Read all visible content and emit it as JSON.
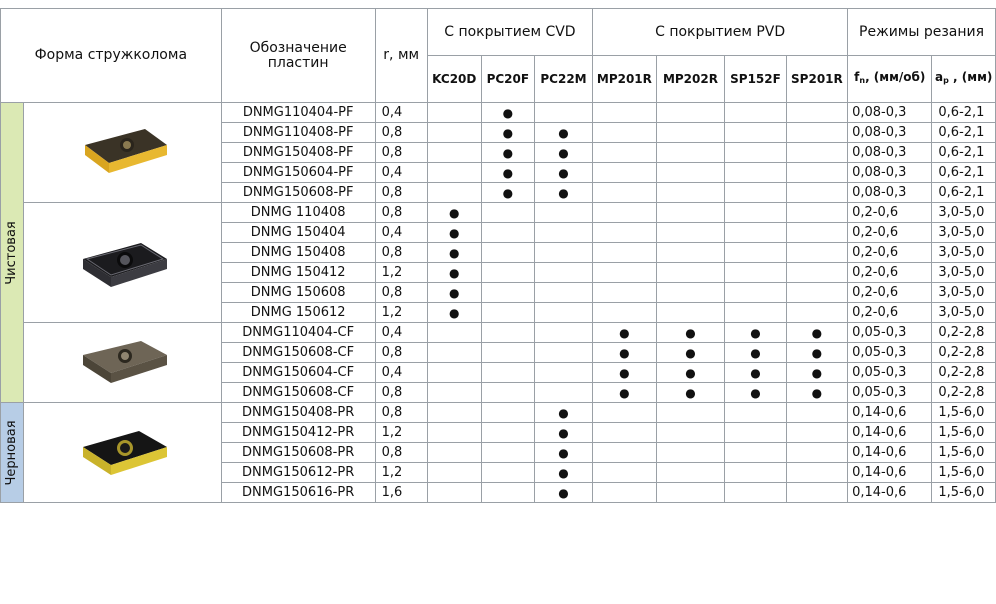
{
  "header": {
    "shape": "Форма стружколома",
    "designation": "Обозначение пластин",
    "radius": "r, мм",
    "cvd": "С покрытием CVD",
    "pvd": "С покрытием PVD",
    "cutting": "Режимы резания",
    "grades": [
      "KC20D",
      "PC20F",
      "PC22M",
      "MP201R",
      "MP202R",
      "SP152F",
      "SP201R"
    ],
    "feed": "f",
    "feed_sub": "n",
    "feed_unit": ", (мм/об)",
    "depth": "a",
    "depth_sub": "p",
    "depth_unit": " , (мм)"
  },
  "categories": {
    "finishing": "Чистовая",
    "roughing": "Черновая"
  },
  "mark": "●",
  "groups": [
    {
      "image": "yellow-insert",
      "rows": [
        {
          "d": "DNMG110404-PF",
          "r": "0,4",
          "m": [
            0,
            1,
            0,
            0,
            0,
            0,
            0
          ],
          "f": "0,08-0,3",
          "a": "0,6-2,1"
        },
        {
          "d": "DNMG110408-PF",
          "r": "0,8",
          "m": [
            0,
            1,
            1,
            0,
            0,
            0,
            0
          ],
          "f": "0,08-0,3",
          "a": "0,6-2,1"
        },
        {
          "d": "DNMG150408-PF",
          "r": "0,8",
          "m": [
            0,
            1,
            1,
            0,
            0,
            0,
            0
          ],
          "f": "0,08-0,3",
          "a": "0,6-2,1"
        },
        {
          "d": "DNMG150604-PF",
          "r": "0,4",
          "m": [
            0,
            1,
            1,
            0,
            0,
            0,
            0
          ],
          "f": "0,08-0,3",
          "a": "0,6-2,1"
        },
        {
          "d": "DNMG150608-PF",
          "r": "0,8",
          "m": [
            0,
            1,
            1,
            0,
            0,
            0,
            0
          ],
          "f": "0,08-0,3",
          "a": "0,6-2,1"
        }
      ]
    },
    {
      "image": "black-insert",
      "rows": [
        {
          "d": "DNMG 110408",
          "r": "0,8",
          "m": [
            1,
            0,
            0,
            0,
            0,
            0,
            0
          ],
          "f": "0,2-0,6",
          "a": "3,0-5,0"
        },
        {
          "d": "DNMG 150404",
          "r": "0,4",
          "m": [
            1,
            0,
            0,
            0,
            0,
            0,
            0
          ],
          "f": "0,2-0,6",
          "a": "3,0-5,0"
        },
        {
          "d": "DNMG 150408",
          "r": "0,8",
          "m": [
            1,
            0,
            0,
            0,
            0,
            0,
            0
          ],
          "f": "0,2-0,6",
          "a": "3,0-5,0"
        },
        {
          "d": "DNMG 150412",
          "r": "1,2",
          "m": [
            1,
            0,
            0,
            0,
            0,
            0,
            0
          ],
          "f": "0,2-0,6",
          "a": "3,0-5,0"
        },
        {
          "d": "DNMG 150608",
          "r": "0,8",
          "m": [
            1,
            0,
            0,
            0,
            0,
            0,
            0
          ],
          "f": "0,2-0,6",
          "a": "3,0-5,0"
        },
        {
          "d": "DNMG 150612",
          "r": "1,2",
          "m": [
            1,
            0,
            0,
            0,
            0,
            0,
            0
          ],
          "f": "0,2-0,6",
          "a": "3,0-5,0"
        }
      ]
    },
    {
      "image": "bronze-insert",
      "rows": [
        {
          "d": "DNMG110404-CF",
          "r": "0,4",
          "m": [
            0,
            0,
            0,
            1,
            1,
            1,
            1
          ],
          "f": "0,05-0,3",
          "a": "0,2-2,8"
        },
        {
          "d": "DNMG150608-CF",
          "r": "0,8",
          "m": [
            0,
            0,
            0,
            1,
            1,
            1,
            1
          ],
          "f": "0,05-0,3",
          "a": "0,2-2,8"
        },
        {
          "d": "DNMG150604-CF",
          "r": "0,4",
          "m": [
            0,
            0,
            0,
            1,
            1,
            1,
            1
          ],
          "f": "0,05-0,3",
          "a": "0,2-2,8"
        },
        {
          "d": "DNMG150608-CF",
          "r": "0,8",
          "m": [
            0,
            0,
            0,
            1,
            1,
            1,
            1
          ],
          "f": "0,05-0,3",
          "a": "0,2-2,8"
        }
      ]
    },
    {
      "image": "black-yellow-insert",
      "rows": [
        {
          "d": "DNMG150408-PR",
          "r": "0,8",
          "m": [
            0,
            0,
            1,
            0,
            0,
            0,
            0
          ],
          "f": "0,14-0,6",
          "a": "1,5-6,0"
        },
        {
          "d": "DNMG150412-PR",
          "r": "1,2",
          "m": [
            0,
            0,
            1,
            0,
            0,
            0,
            0
          ],
          "f": "0,14-0,6",
          "a": "1,5-6,0"
        },
        {
          "d": "DNMG150608-PR",
          "r": "0,8",
          "m": [
            0,
            0,
            1,
            0,
            0,
            0,
            0
          ],
          "f": "0,14-0,6",
          "a": "1,5-6,0"
        },
        {
          "d": "DNMG150612-PR",
          "r": "1,2",
          "m": [
            0,
            0,
            1,
            0,
            0,
            0,
            0
          ],
          "f": "0,14-0,6",
          "a": "1,5-6,0"
        },
        {
          "d": "DNMG150616-PR",
          "r": "1,6",
          "m": [
            0,
            0,
            1,
            0,
            0,
            0,
            0
          ],
          "f": "0,14-0,6",
          "a": "1,5-6,0"
        }
      ]
    }
  ]
}
